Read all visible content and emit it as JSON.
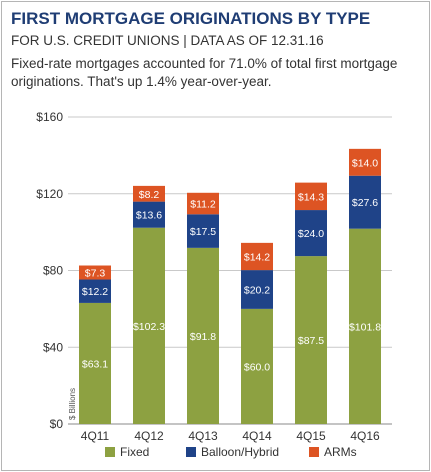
{
  "chart_data": {
    "type": "bar",
    "stacked": true,
    "title": "FIRST MORTGAGE ORIGINATIONS BY TYPE",
    "subtitle": "FOR U.S. CREDIT UNIONS | DATA AS OF 12.31.16",
    "description": "Fixed-rate mortgages accounted for 71.0% of total first mortgage originations. That's up 1.4% year-over-year.",
    "ylabel": "$ Billions",
    "ylim": [
      0,
      160
    ],
    "yticks": [
      0,
      40,
      80,
      120,
      160
    ],
    "ytick_labels": [
      "$0",
      "$40",
      "$80",
      "$120",
      "$160"
    ],
    "grid": true,
    "legend_position": "bottom",
    "categories": [
      "4Q11",
      "4Q12",
      "4Q13",
      "4Q14",
      "4Q15",
      "4Q16"
    ],
    "series": [
      {
        "name": "Fixed",
        "color": "#8da141",
        "values": [
          63.1,
          102.3,
          91.8,
          60.0,
          87.5,
          101.8
        ],
        "labels": [
          "$63.1",
          "$102.3",
          "$91.8",
          "$60.0",
          "$87.5",
          "$101.8"
        ]
      },
      {
        "name": "Balloon/Hybrid",
        "color": "#1f4388",
        "values": [
          12.2,
          13.6,
          17.5,
          20.2,
          24.0,
          27.6
        ],
        "labels": [
          "$12.2",
          "$13.6",
          "$17.5",
          "$20.2",
          "$24.0",
          "$27.6"
        ]
      },
      {
        "name": "ARMs",
        "color": "#dd5423",
        "values": [
          7.3,
          8.2,
          11.2,
          14.2,
          14.3,
          14.0
        ],
        "labels": [
          "$7.3",
          "$8.2",
          "$11.2",
          "$14.2",
          "$14.3",
          "$14.0"
        ]
      }
    ]
  }
}
